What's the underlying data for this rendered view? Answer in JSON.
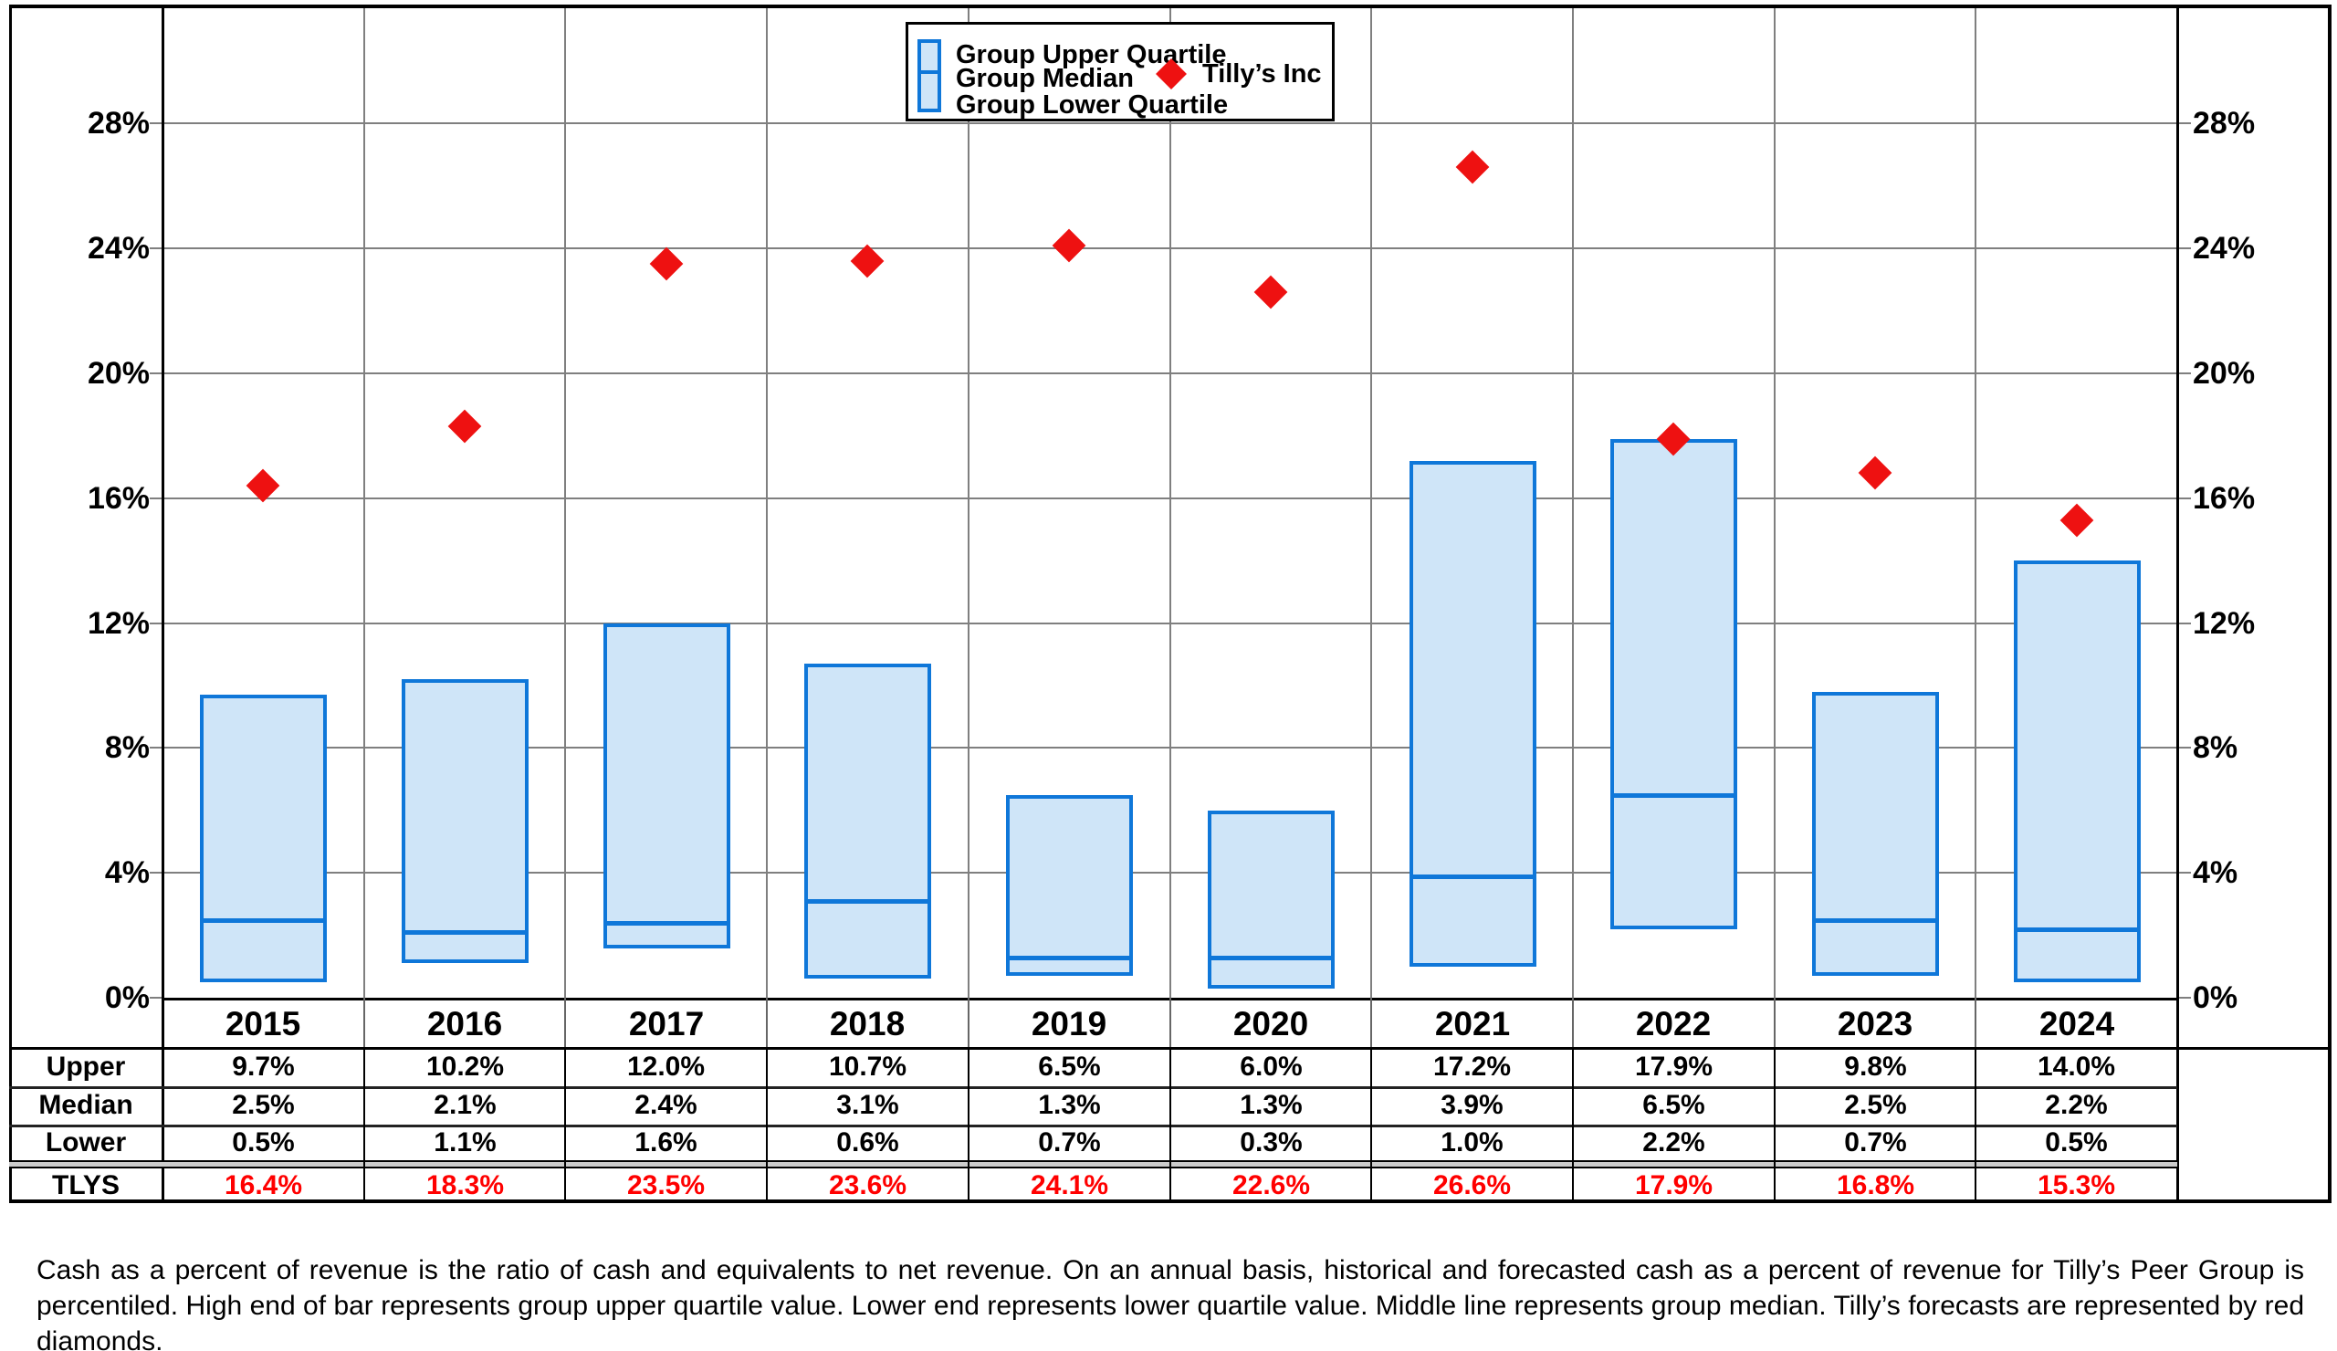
{
  "legend": {
    "bar_labels": [
      "Group Upper Quartile",
      "Group Median",
      "Group Lower Quartile"
    ],
    "diamond_label": "Tilly’s Inc"
  },
  "chart_data": {
    "type": "bar",
    "subtype": "floating-quartile-range-bars-with-diamond-scatter",
    "title": "",
    "xlabel": "",
    "ylabel": "",
    "categories": [
      "2015",
      "2016",
      "2017",
      "2018",
      "2019",
      "2020",
      "2021",
      "2022",
      "2023",
      "2024"
    ],
    "series": [
      {
        "name": "Group Upper Quartile",
        "role": "bar-top",
        "values": [
          9.7,
          10.2,
          12.0,
          10.7,
          6.5,
          6.0,
          17.2,
          17.9,
          9.8,
          14.0
        ]
      },
      {
        "name": "Group Median",
        "role": "bar-median-line",
        "values": [
          2.5,
          2.1,
          2.4,
          3.1,
          1.3,
          1.3,
          3.9,
          6.5,
          2.5,
          2.2
        ]
      },
      {
        "name": "Group Lower Quartile",
        "role": "bar-bottom",
        "values": [
          0.5,
          1.1,
          1.6,
          0.6,
          0.7,
          0.3,
          1.0,
          2.2,
          0.7,
          0.5
        ]
      },
      {
        "name": "Tilly’s Inc",
        "role": "scatter-diamond",
        "values": [
          16.4,
          18.3,
          23.5,
          23.6,
          24.1,
          22.6,
          26.6,
          17.9,
          16.8,
          15.3
        ]
      }
    ],
    "ylim": [
      0,
      31.8
    ],
    "yticks": [
      0,
      4,
      8,
      12,
      16,
      20,
      24,
      28
    ],
    "ytick_suffix": "%",
    "y_axis_sides": "both",
    "grid": true,
    "legend_position": "top-center",
    "colors": {
      "bar_fill": "#cfe5f8",
      "bar_border": "#0f77d9",
      "median_line": "#0f77d9",
      "diamond": "#ee1111",
      "tlys_text": "#ff0000",
      "gridline": "#7f7f7f",
      "axis_text": "#000000"
    }
  },
  "table": {
    "rows": [
      {
        "label": "Upper",
        "text_color": "#000000",
        "values": [
          "9.7%",
          "10.2%",
          "12.0%",
          "10.7%",
          "6.5%",
          "6.0%",
          "17.2%",
          "17.9%",
          "9.8%",
          "14.0%"
        ]
      },
      {
        "label": "Median",
        "text_color": "#000000",
        "values": [
          "2.5%",
          "2.1%",
          "2.4%",
          "3.1%",
          "1.3%",
          "1.3%",
          "3.9%",
          "6.5%",
          "2.5%",
          "2.2%"
        ]
      },
      {
        "label": "Lower",
        "text_color": "#000000",
        "values": [
          "0.5%",
          "1.1%",
          "1.6%",
          "0.6%",
          "0.7%",
          "0.3%",
          "1.0%",
          "2.2%",
          "0.7%",
          "0.5%"
        ]
      },
      {
        "label": "TLYS",
        "text_color": "#ff0000",
        "values": [
          "16.4%",
          "18.3%",
          "23.5%",
          "23.6%",
          "24.1%",
          "22.6%",
          "26.6%",
          "17.9%",
          "16.8%",
          "15.3%"
        ]
      }
    ]
  },
  "footnote": "Cash as a percent of revenue is the ratio of cash and equivalents to net revenue.  On an annual basis, historical and forecasted cash as a percent of revenue for Tilly’s Peer Group is percentiled.  High end of bar represents group upper quartile value.  Lower end represents lower quartile value.  Middle line represents group median.  Tilly’s forecasts are represented by red diamonds."
}
